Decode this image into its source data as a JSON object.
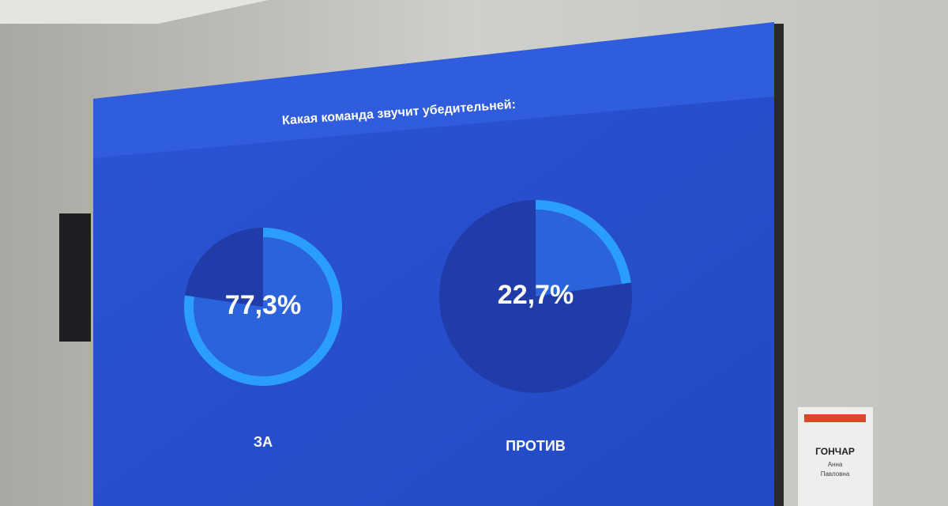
{
  "screen": {
    "title": "Какая команда звучит убедительней:",
    "options": [
      {
        "label": "ЗА",
        "value": 77.3,
        "value_label": "77,3%"
      },
      {
        "label": "ПРОТИВ",
        "value": 22.7,
        "value_label": "22,7%"
      }
    ]
  },
  "nameplate": {
    "surname": "ГОНЧАР",
    "name": "Анна",
    "patronymic": "Павловна"
  }
}
